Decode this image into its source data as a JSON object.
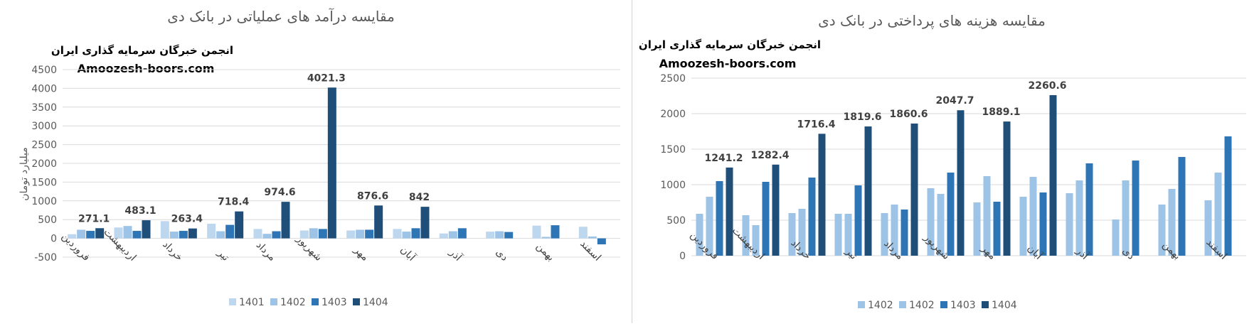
{
  "chart_data": [
    {
      "type": "bar",
      "title": "مقایسه درآمد های عملیاتی در بانک دی",
      "ylabel": "میلیارد تومان",
      "watermark": {
        "line1": "انجمن خبرگان سرمایه گذاری ایران",
        "line2": "Amoozesh-boors.com"
      },
      "categories": [
        "فروردین",
        "اردیبهشت",
        "خرداد",
        "تیر",
        "مرداد",
        "شهریور",
        "مهر",
        "آبان",
        "آذر",
        "دی",
        "بهمن",
        "اسفند"
      ],
      "ylim": [
        -500,
        4500
      ],
      "yticks": [
        -500,
        0,
        500,
        1000,
        1500,
        2000,
        2500,
        3000,
        3500,
        4000,
        4500
      ],
      "grid": true,
      "legend_position": "bottom",
      "series": [
        {
          "name": "1401",
          "color": "#bdd7ee",
          "values": [
            110,
            290,
            460,
            390,
            250,
            210,
            210,
            250,
            130,
            180,
            340,
            310
          ]
        },
        {
          "name": "1402",
          "color": "#9dc3e6",
          "values": [
            230,
            330,
            180,
            190,
            120,
            270,
            230,
            180,
            190,
            190,
            40,
            50
          ]
        },
        {
          "name": "1403",
          "color": "#2e75b6",
          "values": [
            200,
            200,
            200,
            360,
            190,
            250,
            230,
            270,
            270,
            170,
            350,
            -160
          ]
        },
        {
          "name": "1404",
          "color": "#1f4e79",
          "values": [
            271.1,
            483.1,
            263.4,
            718.4,
            974.6,
            4021.3,
            876.6,
            842,
            null,
            null,
            null,
            null
          ]
        }
      ],
      "data_labels": [
        "271.1",
        "483.1",
        "263.4",
        "718.4",
        "974.6",
        "4021.3",
        "876.6",
        "842"
      ]
    },
    {
      "type": "bar",
      "title": "مقایسه هزینه های پرداختی در بانک دی",
      "ylabel": "",
      "watermark": {
        "line1": "انجمن خبرگان سرمایه گذاری ایران",
        "line2": "Amoozesh-boors.com"
      },
      "categories": [
        "فروردین",
        "اردیبهشت",
        "خرداد",
        "تیر",
        "مرداد",
        "شهریور",
        "مهر",
        "آبان",
        "آذر",
        "دی",
        "بهمن",
        "اسفند"
      ],
      "ylim": [
        0,
        2500
      ],
      "yticks": [
        0,
        500,
        1000,
        1500,
        2000,
        2500
      ],
      "grid": true,
      "legend_position": "bottom",
      "series": [
        {
          "name": "1402",
          "color": "#9dc3e6",
          "values": [
            590,
            570,
            600,
            590,
            600,
            950,
            750,
            830,
            880,
            510,
            720,
            780
          ]
        },
        {
          "name": "1402",
          "color": "#9dc3e6",
          "values": [
            830,
            430,
            660,
            590,
            720,
            870,
            1120,
            1110,
            1060,
            1060,
            940,
            1170
          ]
        },
        {
          "name": "1403",
          "color": "#2e75b6",
          "values": [
            1050,
            1040,
            1100,
            990,
            650,
            1170,
            760,
            890,
            1300,
            1340,
            1390,
            1680
          ]
        },
        {
          "name": "1404",
          "color": "#1f4e79",
          "values": [
            1241.2,
            1282.4,
            1716.4,
            1819.6,
            1860.6,
            2047.7,
            1889.1,
            2260.6,
            null,
            null,
            null,
            null
          ]
        }
      ],
      "data_labels": [
        "1241.2",
        "1282.4",
        "1716.4",
        "1819.6",
        "1860.6",
        "2047.7",
        "1889.1",
        "2260.6"
      ]
    }
  ]
}
